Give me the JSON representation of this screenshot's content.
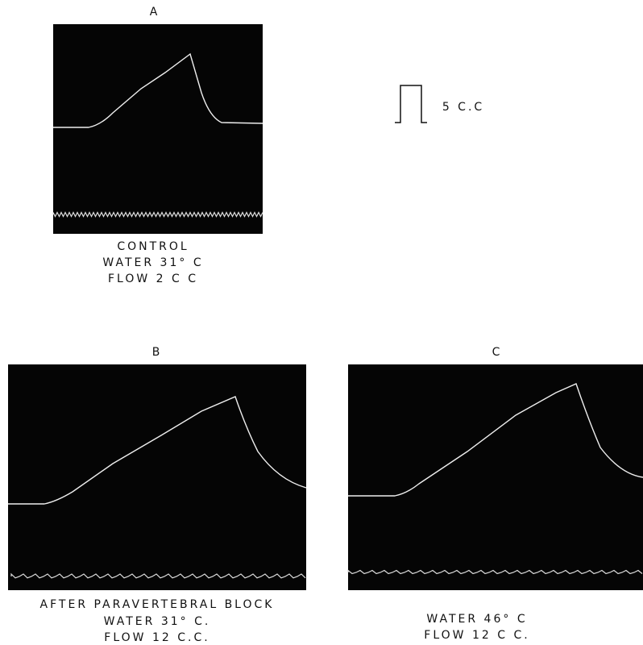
{
  "scale_bar": {
    "label": "5 C.C"
  },
  "panels": [
    {
      "label": "A",
      "caption": [
        "CONTROL",
        "WATER 31° C",
        "FLOW 2 C C"
      ]
    },
    {
      "label": "B",
      "caption": [
        "AFTER PARAVERTEBRAL BLOCK",
        "WATER 31° C.",
        "FLOW 12 C.C."
      ]
    },
    {
      "label": "C",
      "caption": [
        "WATER 46° C",
        "FLOW 12 C C."
      ]
    }
  ]
}
